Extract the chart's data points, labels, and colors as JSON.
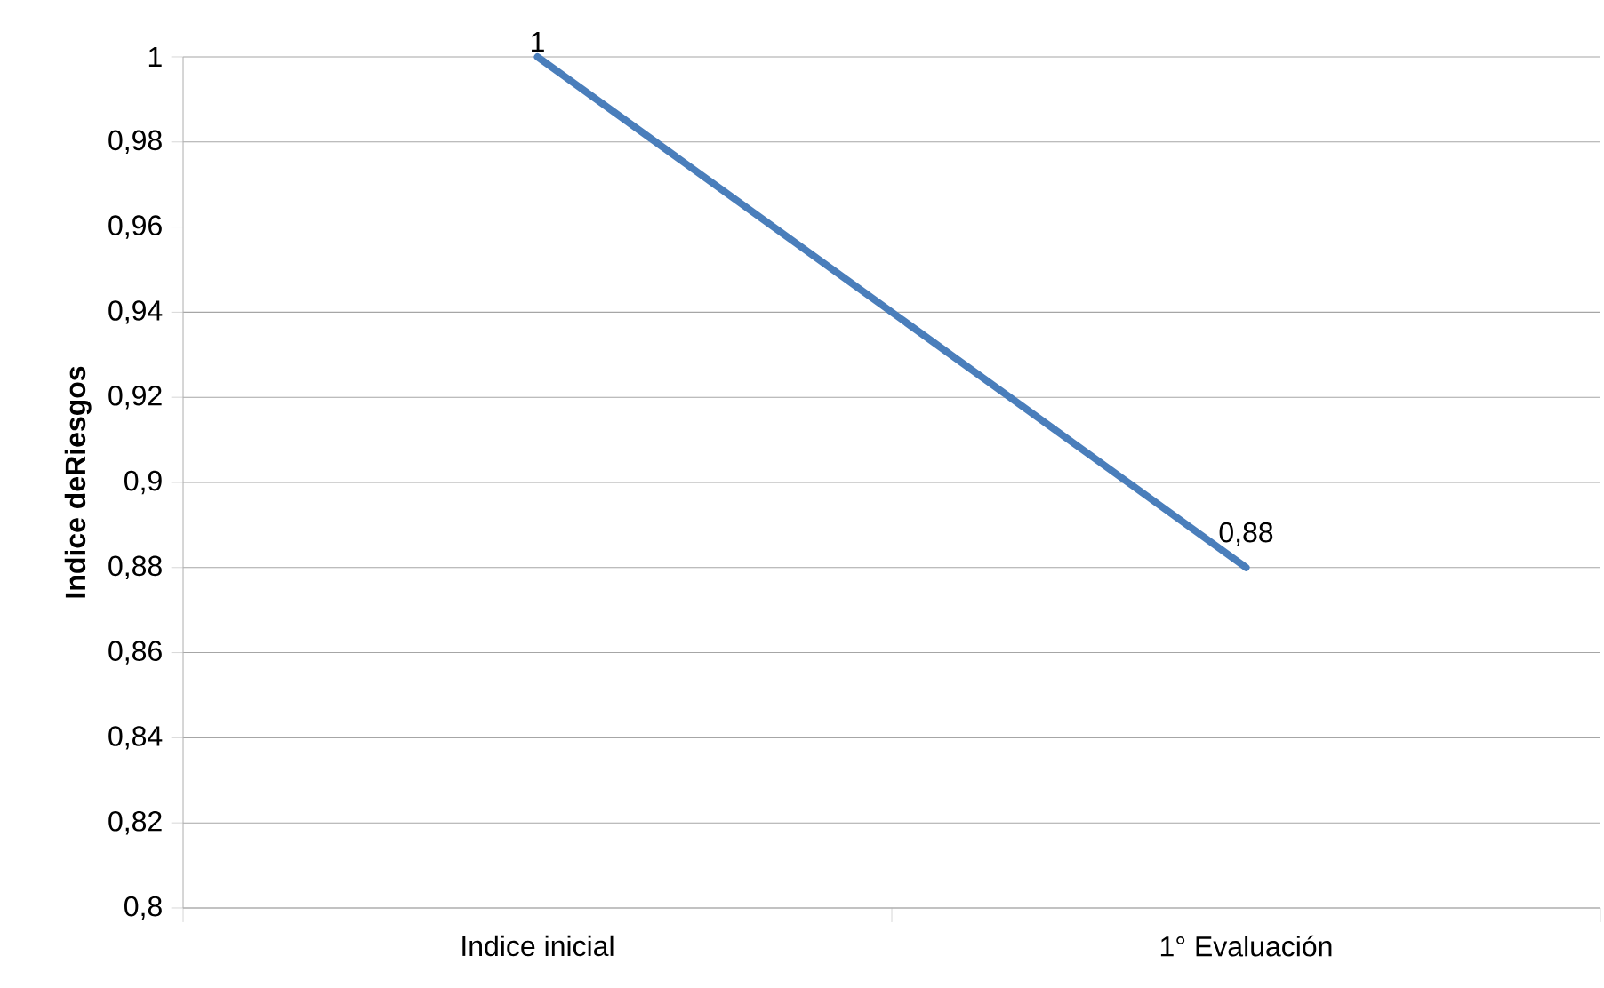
{
  "chart_data": {
    "type": "line",
    "ylabel": "Indice deRiesgos",
    "categories": [
      "Indice inicial",
      "1° Evaluación"
    ],
    "series": [
      {
        "color": "#4a7ebb",
        "values": [
          1,
          0.88
        ],
        "value_labels": [
          "1",
          "0,88"
        ]
      }
    ],
    "ylim": [
      0.8,
      1
    ],
    "yticks": [
      {
        "value": 0.8,
        "label": "0,8"
      },
      {
        "value": 0.82,
        "label": "0,82"
      },
      {
        "value": 0.84,
        "label": "0,84"
      },
      {
        "value": 0.86,
        "label": "0,86"
      },
      {
        "value": 0.88,
        "label": "0,88"
      },
      {
        "value": 0.9,
        "label": "0,9"
      },
      {
        "value": 0.92,
        "label": "0,92"
      },
      {
        "value": 0.94,
        "label": "0,94"
      },
      {
        "value": 0.96,
        "label": "0,96"
      },
      {
        "value": 0.98,
        "label": "0,98"
      },
      {
        "value": 1,
        "label": "1"
      }
    ],
    "grid": "y",
    "marker": "none",
    "line_style": "solid"
  }
}
